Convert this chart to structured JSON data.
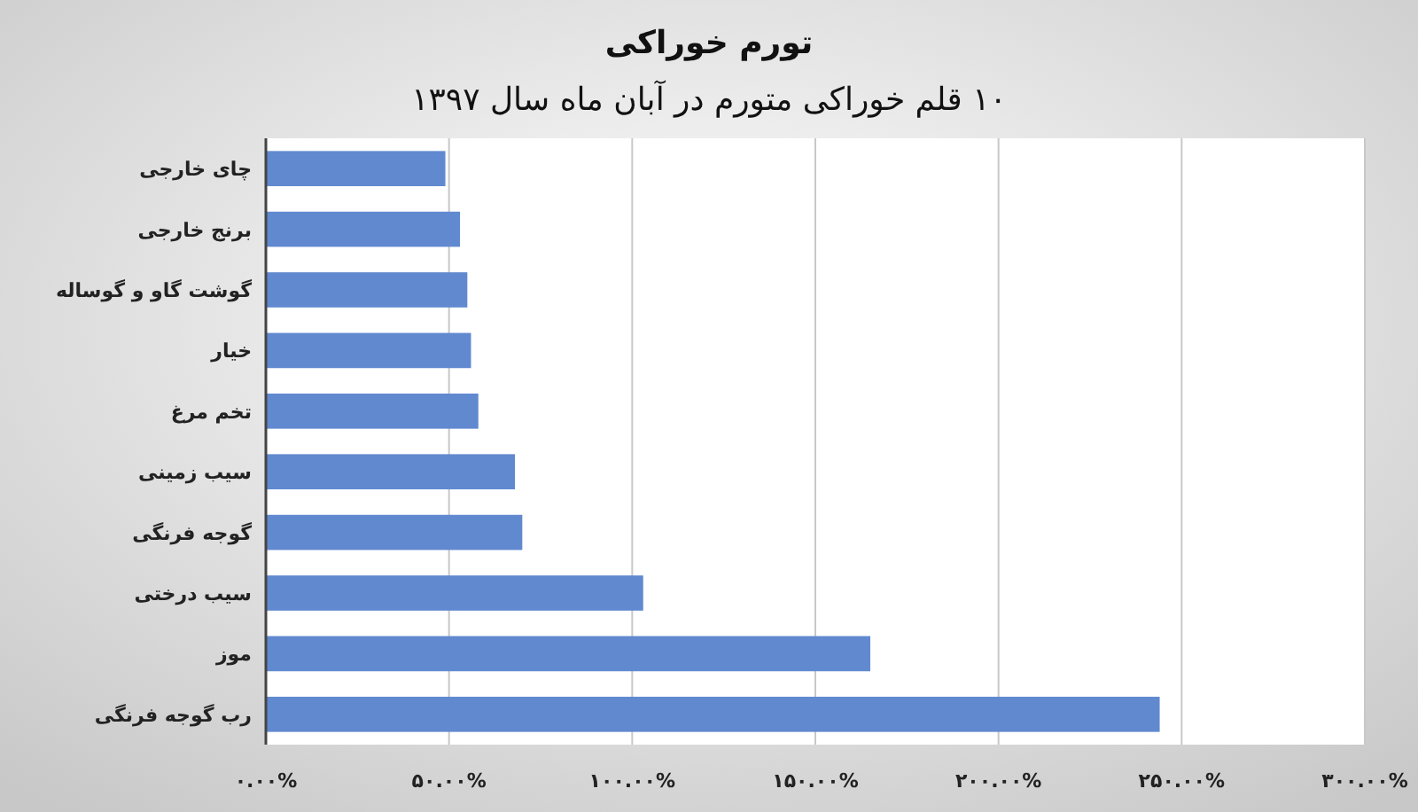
{
  "chart_data": {
    "type": "bar",
    "orientation": "horizontal",
    "title": "تورم خوراکی",
    "subtitle": "۱۰ قلم خوراکی متورم در آبان ماه سال ۱۳۹۷",
    "categories": [
      "چای خارجی",
      "برنج خارجی",
      "گوشت گاو و گوساله",
      "خیار",
      "تخم مرغ",
      "سیب زمینی",
      "گوجه فرنگی",
      "سیب درختی",
      "موز",
      "رب گوجه فرنگی"
    ],
    "values": [
      49,
      53,
      55,
      56,
      58,
      68,
      70,
      103,
      165,
      244
    ],
    "color": "#6189d0",
    "xlim": [
      0,
      300
    ],
    "xticks": [
      {
        "value": 0,
        "label": "۰.۰۰%"
      },
      {
        "value": 50,
        "label": "۵۰.۰۰%"
      },
      {
        "value": 100,
        "label": "۱۰۰.۰۰%"
      },
      {
        "value": 150,
        "label": "۱۵۰.۰۰%"
      },
      {
        "value": 200,
        "label": "۲۰۰.۰۰%"
      },
      {
        "value": 250,
        "label": "۲۵۰.۰۰%"
      },
      {
        "value": 300,
        "label": "۳۰۰.۰۰%"
      }
    ],
    "grid": "x"
  }
}
